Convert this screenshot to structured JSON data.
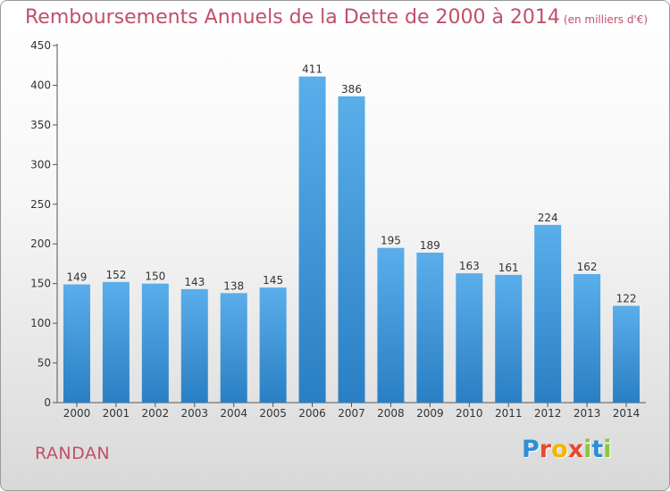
{
  "chart_data": {
    "type": "bar",
    "title": "Remboursements Annuels de la Dette de 2000 à 2014",
    "unit": "(en milliers d'€)",
    "categories": [
      "2000",
      "2001",
      "2002",
      "2003",
      "2004",
      "2005",
      "2006",
      "2007",
      "2008",
      "2009",
      "2010",
      "2011",
      "2012",
      "2013",
      "2014"
    ],
    "values": [
      149,
      152,
      150,
      143,
      138,
      145,
      411,
      386,
      195,
      189,
      163,
      161,
      224,
      162,
      122
    ],
    "ylim": [
      0,
      450
    ],
    "yticks": [
      0,
      50,
      100,
      150,
      200,
      250,
      300,
      350,
      400,
      450
    ],
    "grid": false,
    "legend": "none",
    "bar_color_top": "#5aaeea",
    "bar_color_bottom": "#2a7fc4"
  },
  "commune": "RANDAN",
  "logo": {
    "letters": [
      "P",
      "r",
      "o",
      "x",
      "i",
      "t",
      "i"
    ],
    "colors": [
      "#2d8fd5",
      "#e84a2f",
      "#f2b600",
      "#e84a2f",
      "#8cc63f",
      "#2d8fd5",
      "#8cc63f"
    ]
  }
}
